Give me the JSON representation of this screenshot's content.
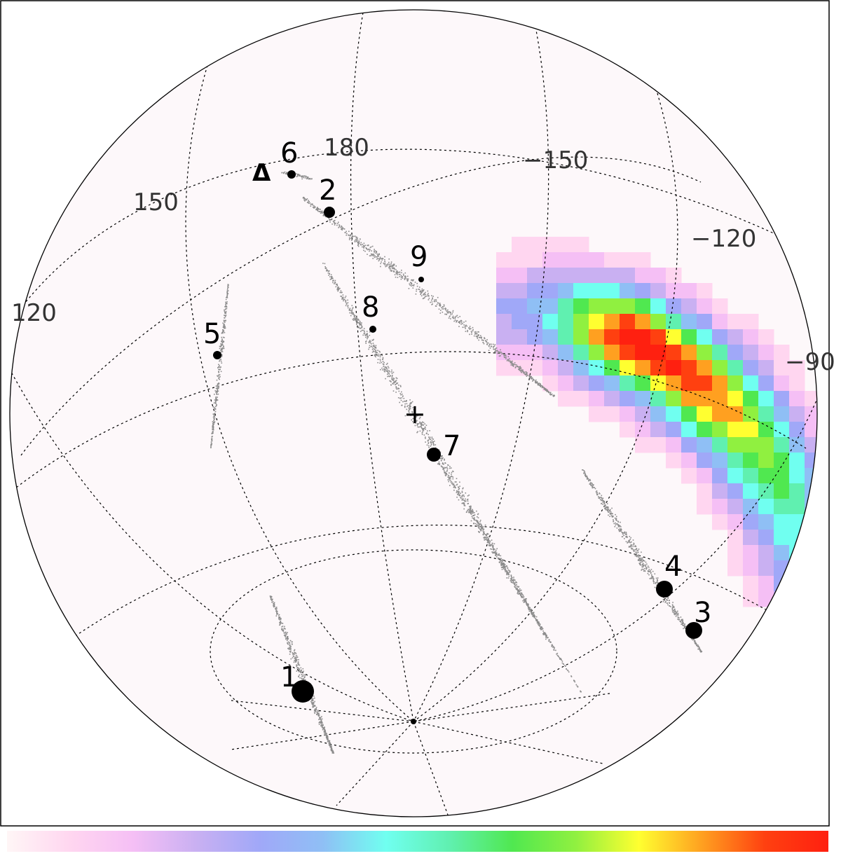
{
  "figure": {
    "longitude_labels": [
      {
        "id": "lon-180",
        "text": "180"
      },
      {
        "id": "lon-150",
        "text": "150"
      },
      {
        "id": "lon-120",
        "text": "120"
      },
      {
        "id": "lon-m150",
        "text": "−150"
      },
      {
        "id": "lon-m120",
        "text": "−120"
      },
      {
        "id": "lon-m90",
        "text": "−90"
      }
    ],
    "events": [
      {
        "id": "1",
        "label": "1",
        "size": "largest"
      },
      {
        "id": "2",
        "label": "2",
        "size": "small"
      },
      {
        "id": "3",
        "label": "3",
        "size": "large"
      },
      {
        "id": "4",
        "label": "4",
        "size": "large"
      },
      {
        "id": "5",
        "label": "5",
        "size": "small"
      },
      {
        "id": "6",
        "label": "6",
        "size": "small"
      },
      {
        "id": "7",
        "label": "7",
        "size": "medium"
      },
      {
        "id": "8",
        "label": "8",
        "size": "tiny"
      },
      {
        "id": "9",
        "label": "9",
        "size": "tiny"
      }
    ],
    "markers": [
      {
        "id": "triangle",
        "symbol": "Δ"
      },
      {
        "id": "cross",
        "symbol": "+"
      }
    ],
    "colorbar": {
      "stops": [
        "#fff6f6",
        "#ffd6f0",
        "#f5bff5",
        "#c9b0f2",
        "#a0a8f8",
        "#8fbff5",
        "#70fff0",
        "#60f0b0",
        "#50e850",
        "#90f040",
        "#ffff30",
        "#ffa020",
        "#ff4010",
        "#ff2010"
      ]
    },
    "colors": {
      "scatter": "#8c8c8c",
      "map_hot": "#ff2010",
      "map_mid": "#50e850",
      "map_cold": "#a0a8f8",
      "map_faint": "#f5bff5"
    }
  }
}
